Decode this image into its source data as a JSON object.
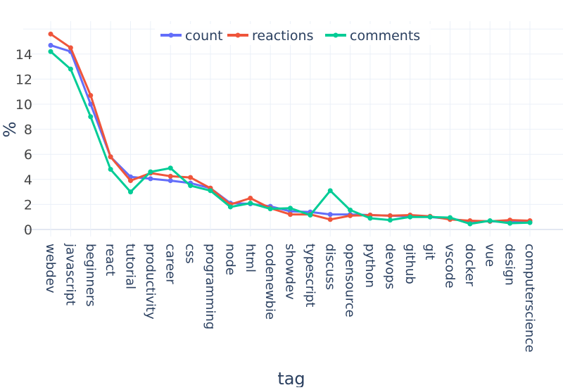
{
  "chart_data": {
    "type": "line",
    "title": "",
    "xlabel": "tag",
    "ylabel": "%",
    "ylim": [
      -0.5,
      16.5
    ],
    "yticks": [
      0,
      2,
      4,
      6,
      8,
      10,
      12,
      14
    ],
    "grid": true,
    "legend_position": "top-center-horizontal",
    "categories": [
      "webdev",
      "javascript",
      "beginners",
      "react",
      "tutorial",
      "productivity",
      "career",
      "css",
      "programming",
      "node",
      "html",
      "codenewbie",
      "showdev",
      "typescript",
      "discuss",
      "opensource",
      "python",
      "devops",
      "github",
      "git",
      "vscode",
      "docker",
      "vue",
      "design",
      "computerscience"
    ],
    "series": [
      {
        "name": "count",
        "color": "#636efa",
        "values": [
          14.7,
          14.2,
          10.0,
          5.8,
          4.2,
          4.05,
          3.9,
          3.7,
          3.3,
          2.1,
          2.05,
          1.85,
          1.45,
          1.4,
          1.2,
          1.2,
          1.15,
          1.1,
          1.05,
          1.0,
          0.85,
          0.65,
          0.65,
          0.6,
          0.6
        ]
      },
      {
        "name": "reactions",
        "color": "#ef553b",
        "values": [
          15.6,
          14.5,
          10.7,
          5.8,
          3.9,
          4.5,
          4.25,
          4.15,
          3.3,
          2.0,
          2.5,
          1.7,
          1.2,
          1.2,
          0.8,
          1.1,
          1.15,
          1.1,
          1.15,
          1.05,
          0.8,
          0.7,
          0.65,
          0.75,
          0.7
        ]
      },
      {
        "name": "comments",
        "color": "#00cc96",
        "values": [
          14.2,
          12.8,
          9.0,
          4.8,
          3.0,
          4.6,
          4.9,
          3.5,
          3.1,
          1.8,
          2.1,
          1.65,
          1.7,
          1.15,
          3.1,
          1.55,
          0.9,
          0.75,
          1.0,
          1.0,
          0.95,
          0.45,
          0.7,
          0.5,
          0.55
        ]
      }
    ]
  },
  "style": {
    "grid_color": "#ebf0f8",
    "zero_line_color": "#e3e8f2",
    "tick_label_color": "#2a3f5f",
    "axis_title_color": "#2a3f5f"
  }
}
